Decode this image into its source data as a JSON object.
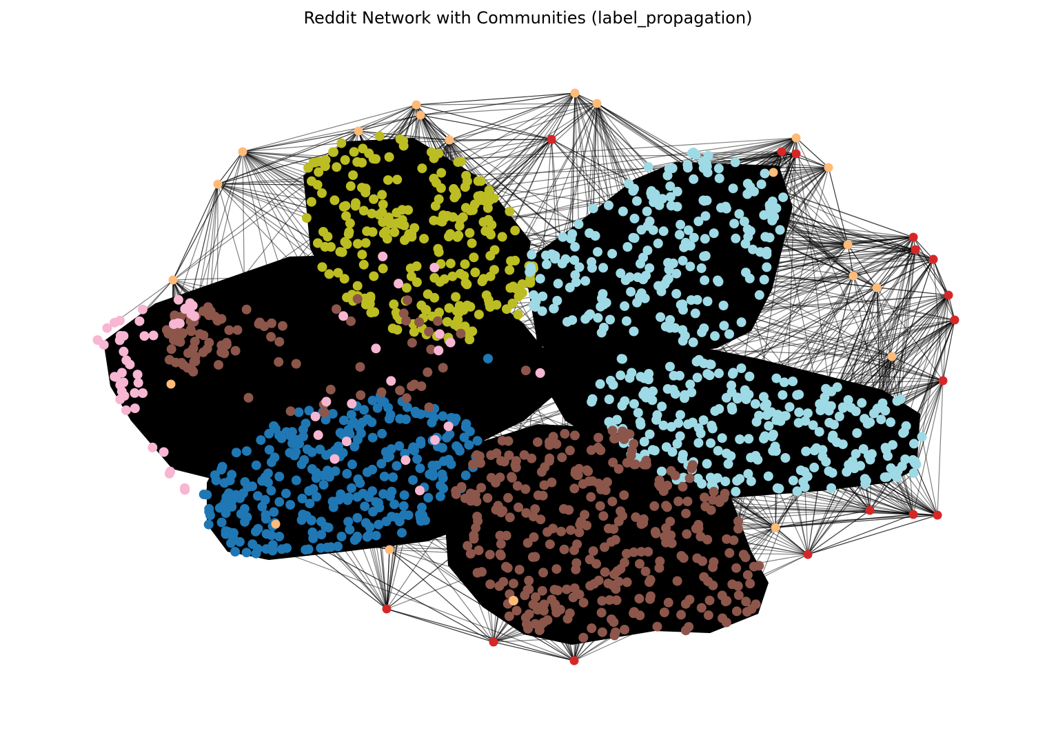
{
  "figure": {
    "title": "Reddit Network with Communities (label_propagation)"
  },
  "chart_data": {
    "type": "network",
    "title": "Reddit Network with Communities (label_propagation)",
    "axes_visible": false,
    "legend": "none",
    "edge_color": "#000000",
    "communities": [
      {
        "color": "#bcbd22",
        "role": "cluster"
      },
      {
        "color": "#9edae5",
        "role": "cluster"
      },
      {
        "color": "#1f77b4",
        "role": "cluster"
      },
      {
        "color": "#8c564b",
        "role": "cluster"
      },
      {
        "color": "#f7b6d2",
        "role": "cluster"
      },
      {
        "color": "#ffbb78",
        "role": "periphery"
      },
      {
        "color": "#d62728",
        "role": "periphery"
      }
    ]
  }
}
